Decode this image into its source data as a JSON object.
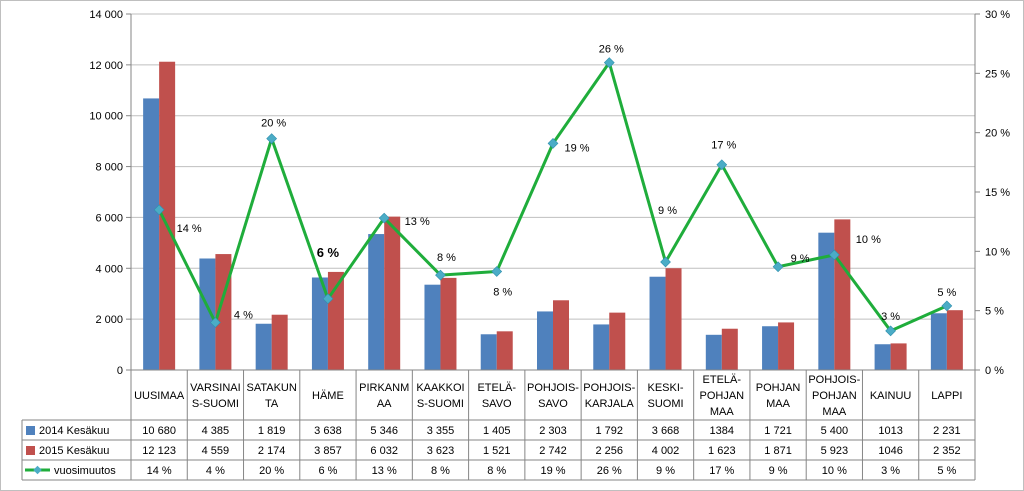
{
  "chart_data": {
    "type": "bar",
    "categories": [
      [
        "UUSIMAA"
      ],
      [
        "VARSINAI",
        "S-SUOMI"
      ],
      [
        "SATAKUN",
        "TA"
      ],
      [
        "HÄME"
      ],
      [
        "PIRKANM",
        "AA"
      ],
      [
        "KAAKKOI",
        "S-SUOMI"
      ],
      [
        "ETELÄ-",
        "SAVO"
      ],
      [
        "POHJOIS-",
        "SAVO"
      ],
      [
        "POHJOIS-",
        "KARJALA"
      ],
      [
        "KESKI-",
        "SUOMI"
      ],
      [
        "ETELÄ-",
        "POHJAN",
        "MAA"
      ],
      [
        "POHJAN",
        "MAA"
      ],
      [
        "POHJOIS-",
        "POHJAN",
        "MAA"
      ],
      [
        "KAINUU"
      ],
      [
        "LAPPI"
      ]
    ],
    "series": [
      {
        "name": "2014 Kesäkuu",
        "color": "#4f81bd",
        "values": [
          10680,
          4385,
          1819,
          3638,
          5346,
          3355,
          1405,
          2303,
          1792,
          3668,
          1384,
          1721,
          5400,
          1013,
          2231
        ],
        "table_values": [
          "10 680",
          "4 385",
          "1 819",
          "3 638",
          "5 346",
          "3 355",
          "1 405",
          "2 303",
          "1 792",
          "3 668",
          "1384",
          "1 721",
          "5 400",
          "1013",
          "2 231"
        ]
      },
      {
        "name": "2015 Kesäkuu",
        "color": "#c0504d",
        "values": [
          12123,
          4559,
          2174,
          3857,
          6032,
          3623,
          1521,
          2742,
          2256,
          4002,
          1623,
          1871,
          5923,
          1046,
          2352
        ],
        "table_values": [
          "12 123",
          "4 559",
          "2 174",
          "3 857",
          "6 032",
          "3 623",
          "1 521",
          "2 742",
          "2 256",
          "4 002",
          "1 623",
          "1 871",
          "5 923",
          "1046",
          "2 352"
        ]
      }
    ],
    "line_series": {
      "name": "vuosimuutos",
      "color": "#1fad3b",
      "marker_color": "#4bacc6",
      "values": [
        13.5,
        4.0,
        19.5,
        6.0,
        12.8,
        8.0,
        8.3,
        19.1,
        25.9,
        9.1,
        17.3,
        8.7,
        9.7,
        3.3,
        5.4
      ],
      "labels": [
        "14 %",
        "4 %",
        "20 %",
        "6 %",
        "13 %",
        "8 %",
        "8 %",
        "19 %",
        "26 %",
        "9 %",
        "17 %",
        "9 %",
        "10 %",
        "3 %",
        "5 %"
      ],
      "table_values": [
        "14 %",
        "4 %",
        "20 %",
        "6 %",
        "13 %",
        "8 %",
        "8 %",
        "19 %",
        "26 %",
        "9 %",
        "17 %",
        "9 %",
        "10 %",
        "3 %",
        "5 %"
      ]
    },
    "y_left": {
      "min": 0,
      "max": 14000,
      "step": 2000,
      "tick_labels": [
        "0",
        "2 000",
        "4 000",
        "6 000",
        "8 000",
        "10 000",
        "12 000",
        "14 000"
      ]
    },
    "y_right": {
      "min": 0,
      "max": 30,
      "step": 5,
      "tick_labels": [
        "0 %",
        "5 %",
        "10 %",
        "15 %",
        "20 %",
        "25 %",
        "30 %"
      ]
    },
    "grid": true,
    "legend": "data-table"
  }
}
